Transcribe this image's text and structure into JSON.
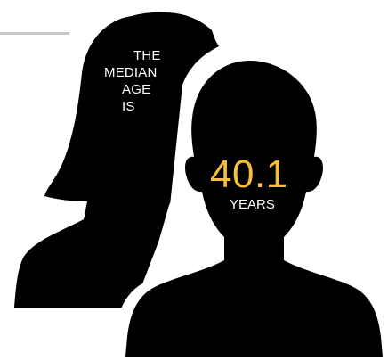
{
  "infographic": {
    "lead_words": [
      "THE",
      "MEDIAN",
      "AGE",
      "IS"
    ],
    "value": "40.1",
    "unit": "YEARS"
  },
  "colors": {
    "silhouette": "#000000",
    "value_accent": "#f7be3c",
    "text": "#ffffff",
    "line": "#c8c8c8"
  },
  "icons": [
    "female-silhouette-icon",
    "male-silhouette-icon"
  ]
}
